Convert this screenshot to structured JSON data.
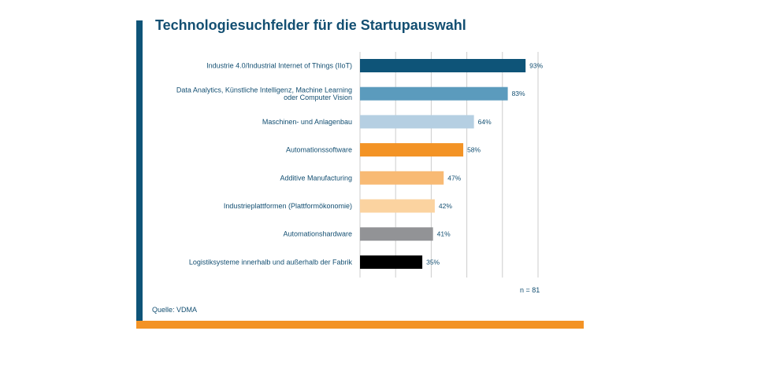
{
  "title": "Technologiesuchfelder für die Startupauswahl",
  "source": "Quelle: VDMA",
  "note": "n = 81",
  "colors": {
    "frame_left": "#0e5478",
    "frame_bottom": "#f39325",
    "text": "#134f72",
    "grid": "#cccccc"
  },
  "chart_data": {
    "type": "bar",
    "orientation": "horizontal",
    "title": "Technologiesuchfelder für die Startupauswahl",
    "categories": [
      [
        "Industrie 4.0/Industrial Internet of Things (IIoT)"
      ],
      [
        "Data Analytics, Künstliche Intelligenz, Machine Learning",
        "oder Computer Vision"
      ],
      [
        "Maschinen- und Anlagenbau"
      ],
      [
        "Automationssoftware"
      ],
      [
        "Additive Manufacturing"
      ],
      [
        "Industrieplattformen (Plattformökonomie)"
      ],
      [
        "Automationshardware"
      ],
      [
        "Logistiksysteme innerhalb und außerhalb der Fabrik"
      ]
    ],
    "values": [
      93,
      83,
      64,
      58,
      47,
      42,
      41,
      35
    ],
    "value_labels": [
      "93%",
      "83%",
      "64%",
      "58%",
      "47%",
      "42%",
      "41%",
      "35%"
    ],
    "colors": [
      "#0e5478",
      "#5b9bbd",
      "#b5cfe2",
      "#f39325",
      "#f8ba74",
      "#fbd3a0",
      "#929396",
      "#000000"
    ],
    "xlim": [
      0,
      100
    ],
    "grid_step": 20,
    "xlabel": "",
    "ylabel": "",
    "grid": true
  }
}
